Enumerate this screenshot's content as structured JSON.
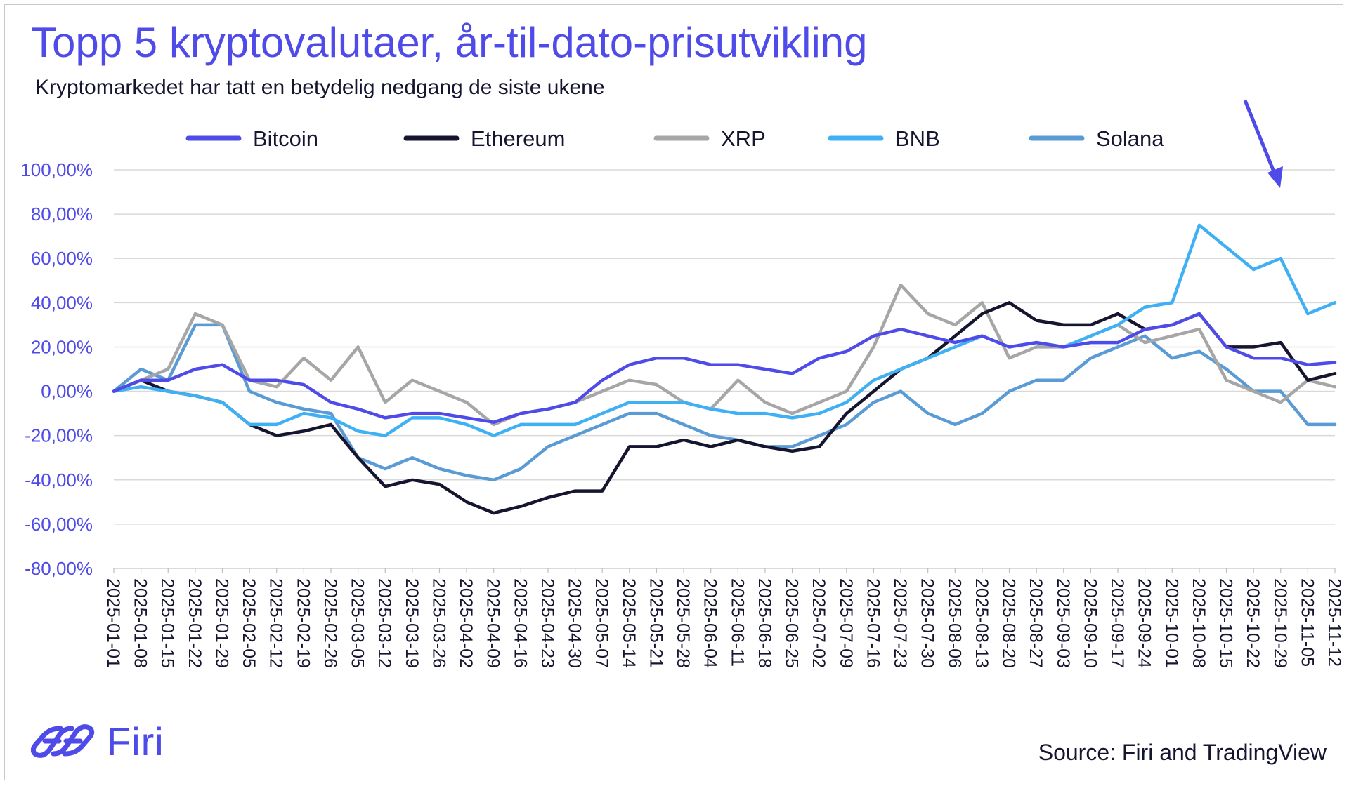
{
  "header": {
    "title": "Topp 5 kryptovalutaer, år-til-dato-prisutvikling",
    "subtitle": "Kryptomarkedet har tatt en betydelig nedgang de siste ukene"
  },
  "footer": {
    "brand": "Firi",
    "source": "Source: Firi and TradingView"
  },
  "colors": {
    "Bitcoin": "#4f4be8",
    "Ethereum": "#151530",
    "XRP": "#a6a6a6",
    "BNB": "#3fb0f4",
    "Solana": "#5b9bd5",
    "accent": "#4f4be8"
  },
  "chart_data": {
    "type": "line",
    "title": "Topp 5 kryptovalutaer, år-til-dato-prisutvikling",
    "subtitle": "Kryptomarkedet har tatt en betydelig nedgang de siste ukene",
    "xlabel": "",
    "ylabel": "",
    "ylim": [
      -80,
      100
    ],
    "y_ticks": [
      "100,00%",
      "80,00%",
      "60,00%",
      "40,00%",
      "20,00%",
      "0,00%",
      "-20,00%",
      "-40,00%",
      "-60,00%",
      "-80,00%"
    ],
    "y_tick_values": [
      100,
      80,
      60,
      40,
      20,
      0,
      -20,
      -40,
      -60,
      -80
    ],
    "grid": true,
    "legend_position": "top",
    "annotation": "arrow pointing to latest decline",
    "categories": [
      "2025-01-01",
      "2025-01-08",
      "2025-01-15",
      "2025-01-22",
      "2025-01-29",
      "2025-02-05",
      "2025-02-12",
      "2025-02-19",
      "2025-02-26",
      "2025-03-05",
      "2025-03-12",
      "2025-03-19",
      "2025-03-26",
      "2025-04-02",
      "2025-04-09",
      "2025-04-16",
      "2025-04-23",
      "2025-04-30",
      "2025-05-07",
      "2025-05-14",
      "2025-05-21",
      "2025-05-28",
      "2025-06-04",
      "2025-06-11",
      "2025-06-18",
      "2025-06-25",
      "2025-07-02",
      "2025-07-09",
      "2025-07-16",
      "2025-07-23",
      "2025-07-30",
      "2025-08-06",
      "2025-08-13",
      "2025-08-20",
      "2025-08-27",
      "2025-09-03",
      "2025-09-10",
      "2025-09-17",
      "2025-09-24",
      "2025-10-01",
      "2025-10-08",
      "2025-10-15",
      "2025-10-22",
      "2025-10-29",
      "2025-11-05",
      "2025-11-12"
    ],
    "series": [
      {
        "name": "Bitcoin",
        "values": [
          0,
          5,
          5,
          10,
          12,
          5,
          5,
          3,
          -5,
          -8,
          -12,
          -10,
          -10,
          -12,
          -14,
          -10,
          -8,
          -5,
          5,
          12,
          15,
          15,
          12,
          12,
          10,
          8,
          15,
          18,
          25,
          28,
          25,
          22,
          25,
          20,
          22,
          20,
          22,
          22,
          28,
          30,
          35,
          20,
          15,
          15,
          12,
          13
        ]
      },
      {
        "name": "Ethereum",
        "values": [
          0,
          5,
          0,
          -2,
          -5,
          -15,
          -20,
          -18,
          -15,
          -30,
          -43,
          -40,
          -42,
          -50,
          -55,
          -52,
          -48,
          -45,
          -45,
          -25,
          -25,
          -22,
          -25,
          -22,
          -25,
          -27,
          -25,
          -10,
          0,
          10,
          15,
          25,
          35,
          40,
          32,
          30,
          30,
          35,
          28,
          30,
          35,
          20,
          20,
          22,
          5,
          8
        ]
      },
      {
        "name": "XRP",
        "values": [
          0,
          5,
          10,
          35,
          30,
          5,
          2,
          15,
          5,
          20,
          -5,
          5,
          0,
          -5,
          -15,
          -10,
          -8,
          -5,
          0,
          5,
          3,
          -5,
          -8,
          5,
          -5,
          -10,
          -5,
          0,
          20,
          48,
          35,
          30,
          40,
          15,
          20,
          20,
          25,
          30,
          22,
          25,
          28,
          5,
          0,
          -5,
          5,
          2
        ]
      },
      {
        "name": "BNB",
        "values": [
          0,
          2,
          0,
          -2,
          -5,
          -15,
          -15,
          -10,
          -12,
          -18,
          -20,
          -12,
          -12,
          -15,
          -20,
          -15,
          -15,
          -15,
          -10,
          -5,
          -5,
          -5,
          -8,
          -10,
          -10,
          -12,
          -10,
          -5,
          5,
          10,
          15,
          20,
          25,
          20,
          22,
          20,
          25,
          30,
          38,
          40,
          75,
          65,
          55,
          60,
          35,
          40
        ]
      },
      {
        "name": "Solana",
        "values": [
          0,
          10,
          5,
          30,
          30,
          0,
          -5,
          -8,
          -10,
          -30,
          -35,
          -30,
          -35,
          -38,
          -40,
          -35,
          -25,
          -20,
          -15,
          -10,
          -10,
          -15,
          -20,
          -22,
          -25,
          -25,
          -20,
          -15,
          -5,
          0,
          -10,
          -15,
          -10,
          0,
          5,
          5,
          15,
          20,
          25,
          15,
          18,
          10,
          0,
          0,
          -15,
          -15
        ]
      }
    ]
  }
}
